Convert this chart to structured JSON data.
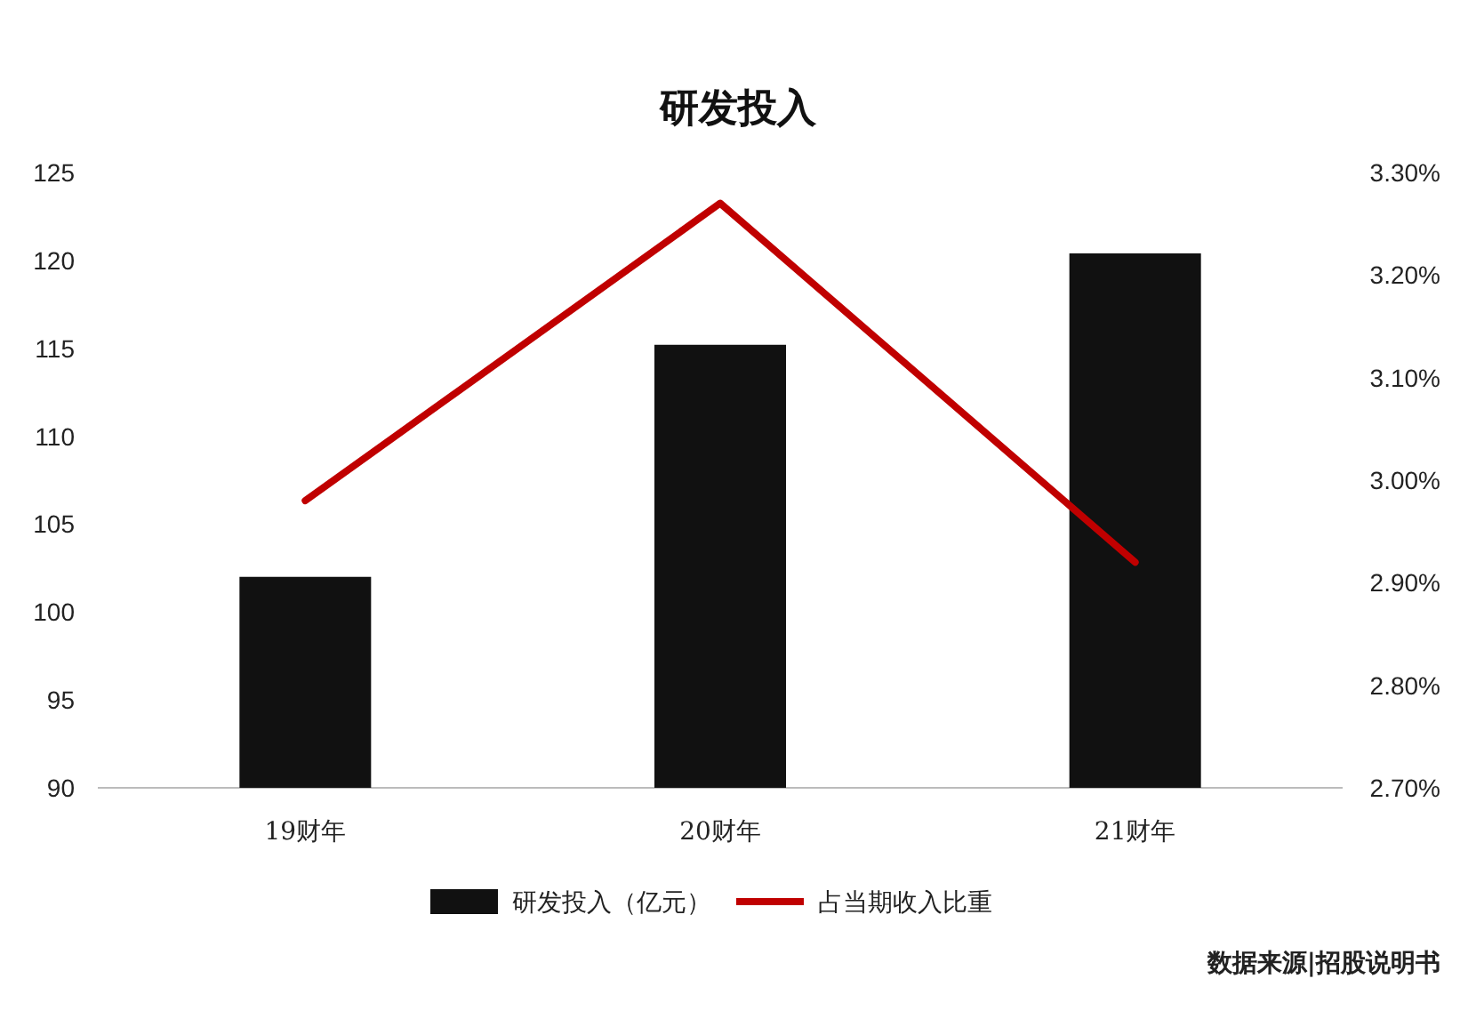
{
  "chart_data": {
    "type": "bar",
    "title": "研发投入",
    "categories": [
      "19财年",
      "20财年",
      "21财年"
    ],
    "series": [
      {
        "name": "研发投入（亿元）",
        "color": "#111111",
        "values": [
          102,
          115.2,
          120.4
        ]
      },
      {
        "name": "占当期收入比重",
        "type": "line",
        "axis": "y2",
        "color": "#c00000",
        "values": [
          2.98,
          3.27,
          2.92
        ]
      }
    ],
    "ylim": [
      90,
      125
    ],
    "yticks": [
      90,
      95,
      100,
      105,
      110,
      115,
      120,
      125
    ],
    "y2lim": [
      2.7,
      3.3
    ],
    "y2ticks": [
      {
        "value": 2.7,
        "label": "2.70%"
      },
      {
        "value": 2.8,
        "label": "2.80%"
      },
      {
        "value": 2.9,
        "label": "2.90%"
      },
      {
        "value": 3.0,
        "label": "3.00%"
      },
      {
        "value": 3.1,
        "label": "3.10%"
      },
      {
        "value": 3.2,
        "label": "3.20%"
      },
      {
        "value": 3.3,
        "label": "3.30%"
      }
    ],
    "grid": false,
    "legend": "bottom",
    "annotations": [
      "数据来源|招股说明书"
    ]
  }
}
